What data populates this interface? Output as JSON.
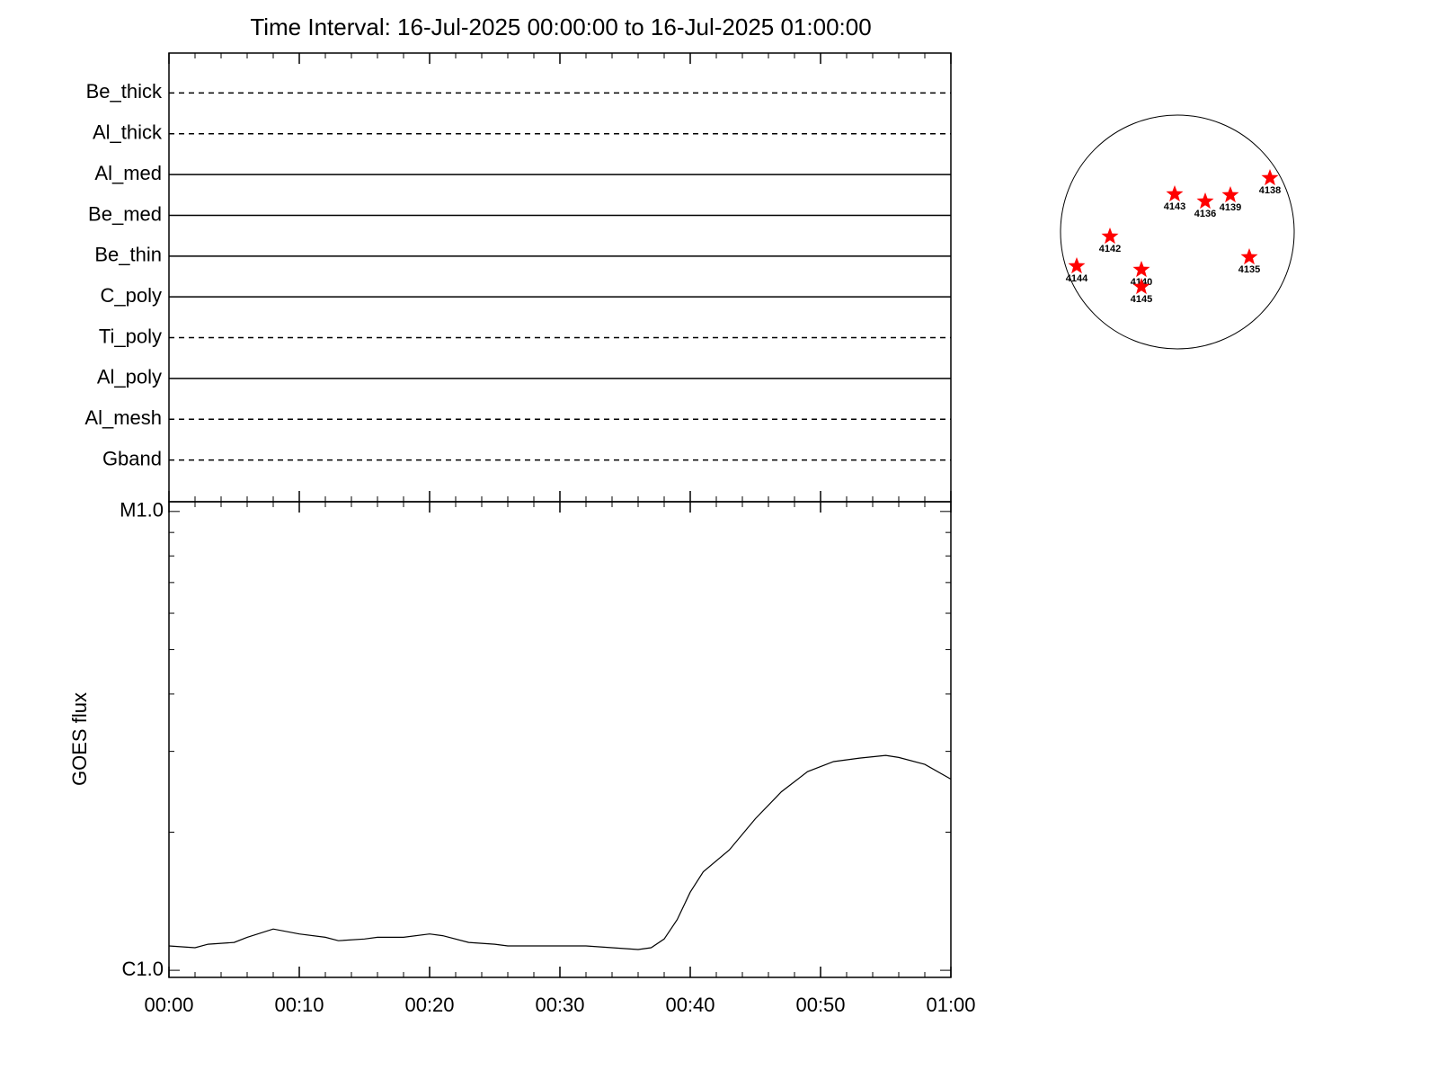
{
  "chart_data": {
    "type": "line",
    "title": "Time Interval: 16-Jul-2025 00:00:00 to 16-Jul-2025 01:00:00",
    "detectors": [
      {
        "name": "Be_thick",
        "style": "dashed"
      },
      {
        "name": "Al_thick",
        "style": "dashed"
      },
      {
        "name": "Al_med",
        "style": "solid"
      },
      {
        "name": "Be_med",
        "style": "solid"
      },
      {
        "name": "Be_thin",
        "style": "solid"
      },
      {
        "name": "C_poly",
        "style": "solid"
      },
      {
        "name": "Ti_poly",
        "style": "dashed"
      },
      {
        "name": "Al_poly",
        "style": "solid"
      },
      {
        "name": "Al_mesh",
        "style": "dashed"
      },
      {
        "name": "Gband",
        "style": "dashed"
      }
    ],
    "y_label": "GOES flux",
    "log_y": true,
    "xlim": [
      0,
      60
    ],
    "xticks": [
      {
        "value": 0,
        "label": "00:00"
      },
      {
        "value": 10,
        "label": "00:10"
      },
      {
        "value": 20,
        "label": "00:20"
      },
      {
        "value": 30,
        "label": "00:30"
      },
      {
        "value": 40,
        "label": "00:40"
      },
      {
        "value": 50,
        "label": "00:50"
      },
      {
        "value": 60,
        "label": "01:00"
      }
    ],
    "xminorticks": [
      2,
      4,
      6,
      8,
      12,
      14,
      16,
      18,
      22,
      24,
      26,
      28,
      32,
      34,
      36,
      38,
      42,
      44,
      46,
      48,
      52,
      54,
      56,
      58
    ],
    "ylim": [
      9.65e-07,
      1.05e-05
    ],
    "yticks": [
      {
        "value": 1e-06,
        "label": "C1.0"
      },
      {
        "value": 1e-05,
        "label": "M1.0"
      }
    ],
    "yminorticks": [
      2e-06,
      3e-06,
      4e-06,
      5e-06,
      6e-06,
      7e-06,
      8e-06,
      9e-06
    ],
    "series": [
      {
        "color": "#000000",
        "x": [
          0,
          2,
          3,
          5,
          6,
          8,
          10,
          12,
          13,
          15,
          16,
          18,
          20,
          21,
          23,
          25,
          26,
          28,
          30,
          32,
          34,
          36,
          37,
          38,
          39,
          40,
          41,
          43,
          45,
          47,
          49,
          51,
          53,
          55,
          56,
          58,
          60
        ],
        "values": [
          1.13e-06,
          1.12e-06,
          1.14e-06,
          1.15e-06,
          1.18e-06,
          1.23e-06,
          1.2e-06,
          1.18e-06,
          1.16e-06,
          1.17e-06,
          1.18e-06,
          1.18e-06,
          1.2e-06,
          1.19e-06,
          1.15e-06,
          1.14e-06,
          1.13e-06,
          1.13e-06,
          1.13e-06,
          1.13e-06,
          1.12e-06,
          1.11e-06,
          1.12e-06,
          1.17e-06,
          1.29e-06,
          1.48e-06,
          1.64e-06,
          1.83e-06,
          2.14e-06,
          2.45e-06,
          2.71e-06,
          2.85e-06,
          2.9e-06,
          2.94e-06,
          2.91e-06,
          2.81e-06,
          2.61e-06
        ]
      }
    ],
    "regions": [
      "4143",
      "4136",
      "4139",
      "4138",
      "4142",
      "4135",
      "4144",
      "4140",
      "4145"
    ],
    "region_color": "#ff0000"
  }
}
